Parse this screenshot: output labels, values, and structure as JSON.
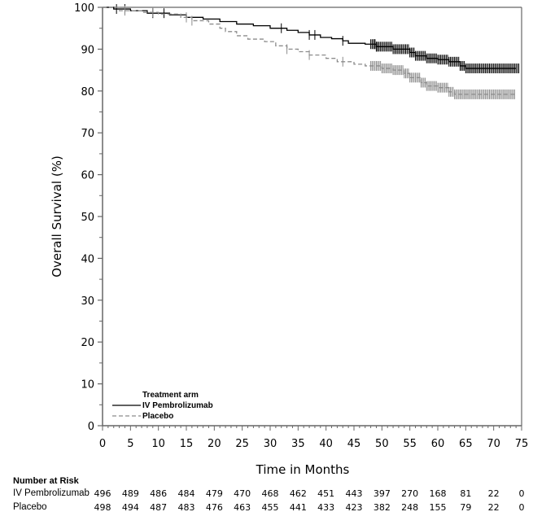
{
  "chart_data": {
    "type": "line",
    "subtype": "kaplan-meier",
    "title": "",
    "xlabel": "Time in Months",
    "ylabel": "Overall Survival (%)",
    "xlim": [
      0,
      75
    ],
    "ylim": [
      0,
      100
    ],
    "x_ticks": [
      0,
      5,
      10,
      15,
      20,
      25,
      30,
      35,
      40,
      45,
      50,
      55,
      60,
      65,
      70,
      75
    ],
    "y_ticks": [
      0,
      10,
      20,
      30,
      40,
      50,
      60,
      70,
      80,
      90,
      100
    ],
    "grid": false,
    "legend": {
      "title": "Treatment arm",
      "placement": "bottom-left",
      "entries": [
        {
          "name": "IV Pembrolizumab",
          "style": "solid",
          "color": "#000000"
        },
        {
          "name": "Placebo",
          "style": "dashed",
          "color": "#8c8c8c"
        }
      ]
    },
    "series": [
      {
        "name": "IV Pembrolizumab",
        "color": "#000000",
        "style": "solid",
        "steps": [
          [
            0,
            100
          ],
          [
            2,
            99.6
          ],
          [
            5,
            99.2
          ],
          [
            8,
            98.6
          ],
          [
            12,
            98.2
          ],
          [
            15,
            97.6
          ],
          [
            18,
            97.2
          ],
          [
            21,
            96.6
          ],
          [
            24,
            96.0
          ],
          [
            27,
            95.6
          ],
          [
            30,
            95.0
          ],
          [
            33,
            94.5
          ],
          [
            35,
            94.0
          ],
          [
            37,
            93.4
          ],
          [
            39,
            92.8
          ],
          [
            41,
            92.5
          ],
          [
            43,
            92.0
          ],
          [
            44,
            91.4
          ],
          [
            47,
            91.2
          ],
          [
            49,
            90.6
          ],
          [
            52,
            90.0
          ],
          [
            55,
            89.2
          ],
          [
            56,
            88.4
          ],
          [
            58,
            87.8
          ],
          [
            60,
            87.5
          ],
          [
            62,
            87.0
          ],
          [
            64,
            86.0
          ],
          [
            65,
            85.4
          ],
          [
            74,
            85.4
          ]
        ],
        "censor_times": [
          2.5,
          4,
          9,
          11,
          15,
          32,
          37,
          38,
          43,
          48,
          48.5,
          49,
          50,
          51,
          52,
          53,
          54,
          55,
          56,
          57,
          58,
          59,
          60,
          61,
          62,
          63,
          64,
          65,
          66,
          67,
          68,
          69,
          70,
          71,
          72,
          73,
          74
        ]
      },
      {
        "name": "Placebo",
        "color": "#8c8c8c",
        "style": "dashed",
        "steps": [
          [
            0,
            100
          ],
          [
            3,
            99.2
          ],
          [
            7,
            98.8
          ],
          [
            10,
            98.4
          ],
          [
            14,
            97.6
          ],
          [
            16,
            96.8
          ],
          [
            19,
            96.0
          ],
          [
            21,
            95.0
          ],
          [
            22,
            94.2
          ],
          [
            24,
            93.2
          ],
          [
            26,
            92.4
          ],
          [
            29,
            91.8
          ],
          [
            31,
            90.8
          ],
          [
            33,
            90.0
          ],
          [
            35,
            89.4
          ],
          [
            37,
            88.6
          ],
          [
            40,
            87.8
          ],
          [
            42,
            87.0
          ],
          [
            45,
            86.4
          ],
          [
            47,
            86.0
          ],
          [
            50,
            85.4
          ],
          [
            52,
            85.0
          ],
          [
            54,
            84.2
          ],
          [
            55,
            83.2
          ],
          [
            57,
            82.0
          ],
          [
            58,
            81.2
          ],
          [
            60,
            80.8
          ],
          [
            62,
            79.8
          ],
          [
            63,
            79.2
          ],
          [
            74,
            79.2
          ]
        ],
        "censor_times": [
          4,
          9,
          15,
          16,
          33,
          37,
          43,
          48,
          49,
          50,
          51,
          52,
          53,
          54,
          55,
          56,
          57,
          58,
          59,
          60,
          61,
          62,
          63,
          64,
          65,
          66,
          67,
          68,
          69,
          70,
          71,
          72,
          73
        ]
      }
    ],
    "number_at_risk": {
      "title": "Number at Risk",
      "times": [
        0,
        5,
        10,
        15,
        20,
        25,
        30,
        35,
        40,
        45,
        50,
        55,
        60,
        65,
        70,
        75
      ],
      "rows": [
        {
          "label": "IV Pembrolizumab",
          "values": [
            496,
            489,
            486,
            484,
            479,
            470,
            468,
            462,
            451,
            443,
            397,
            270,
            168,
            81,
            22,
            0
          ]
        },
        {
          "label": "Placebo",
          "values": [
            498,
            494,
            487,
            483,
            476,
            463,
            455,
            441,
            433,
            423,
            382,
            248,
            155,
            79,
            22,
            0
          ]
        }
      ]
    }
  }
}
